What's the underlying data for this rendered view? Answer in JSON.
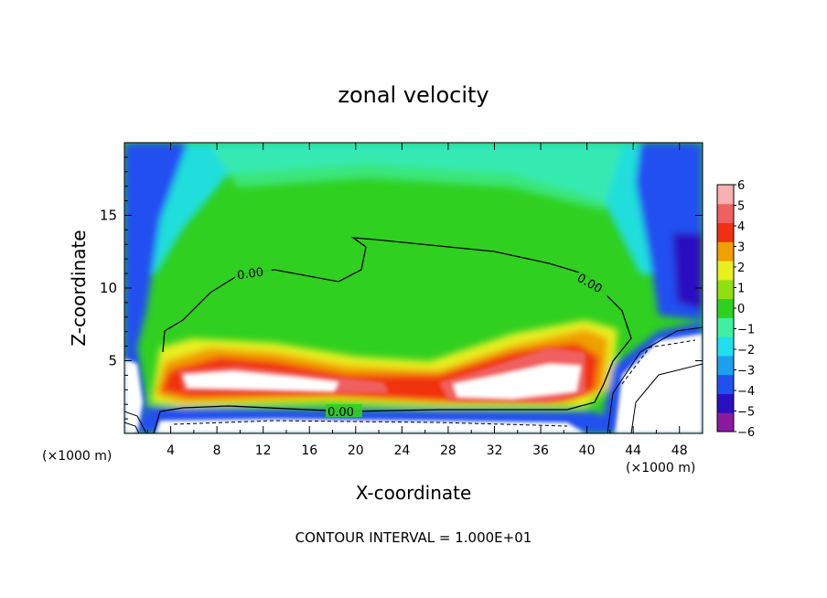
{
  "chart_data": {
    "type": "heatmap",
    "title": "zonal velocity",
    "xlabel": "X-coordinate",
    "ylabel": "Z-coordinate",
    "x_unit_left": "(×1000 m)",
    "x_unit_right": "(×1000 m)",
    "xlim": [
      0,
      50
    ],
    "ylim": [
      0,
      20
    ],
    "x_ticks": [
      4,
      8,
      12,
      16,
      20,
      24,
      28,
      32,
      36,
      40,
      44,
      48
    ],
    "y_ticks": [
      5,
      10,
      15
    ],
    "colorbar_ticks": [
      6,
      5,
      4,
      3,
      2,
      1,
      0,
      -1,
      -2,
      -3,
      -4,
      -5,
      -6
    ],
    "colorbar_range": [
      -6,
      6
    ],
    "contour_labels": [
      "0.00",
      "0.00",
      "0.00"
    ],
    "footer": "CONTOUR INTERVAL = 1.000E+01"
  },
  "colors": {
    "scale": [
      "#8a1aa0",
      "#2a10c0",
      "#2050f0",
      "#1ea0f0",
      "#20e0f0",
      "#40f0a0",
      "#30d020",
      "#90e010",
      "#e8f020",
      "#f0a000",
      "#f03010",
      "#f06060",
      "#f8b0b0"
    ],
    "saturated_high": "#ffffff",
    "axis": "#000000",
    "contour": "#000000"
  }
}
